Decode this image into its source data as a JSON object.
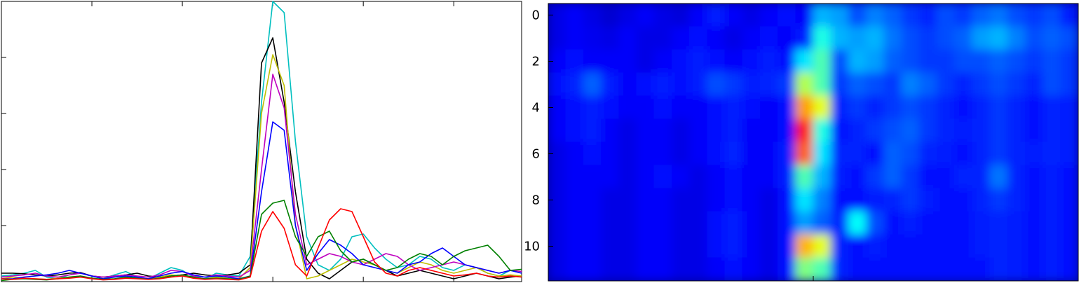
{
  "chart_data": [
    {
      "type": "line",
      "title": "",
      "xlabel": "",
      "ylabel": "",
      "xlim": [
        0,
        46
      ],
      "ylim": [
        0,
        5
      ],
      "x_ticks": [
        0,
        8,
        16,
        24,
        32,
        40
      ],
      "y_ticks": [
        0,
        1,
        2,
        3,
        4,
        5
      ],
      "grid": false,
      "legend": "none",
      "x": [
        0,
        1,
        2,
        3,
        4,
        5,
        6,
        7,
        8,
        9,
        10,
        11,
        12,
        13,
        14,
        15,
        16,
        17,
        18,
        19,
        20,
        21,
        22,
        23,
        24,
        25,
        26,
        27,
        28,
        29,
        30,
        31,
        32,
        33,
        34,
        35,
        36,
        37,
        38,
        39,
        40,
        41,
        42,
        43,
        44,
        45,
        46
      ],
      "series": [
        {
          "color": "#00bfbf",
          "values": [
            0.1,
            0.12,
            0.15,
            0.2,
            0.08,
            0.05,
            0.12,
            0.15,
            0.1,
            0.05,
            0.12,
            0.18,
            0.08,
            0.05,
            0.15,
            0.25,
            0.2,
            0.08,
            0.05,
            0.15,
            0.12,
            0.1,
            0.45,
            3.2,
            5.0,
            4.8,
            2.5,
            0.8,
            0.3,
            0.2,
            0.4,
            0.8,
            0.85,
            0.6,
            0.4,
            0.25,
            0.3,
            0.45,
            0.4,
            0.25,
            0.2,
            0.3,
            0.25,
            0.15,
            0.1,
            0.2,
            0.15
          ]
        },
        {
          "color": "#000000",
          "values": [
            0.15,
            0.15,
            0.14,
            0.12,
            0.1,
            0.12,
            0.15,
            0.16,
            0.1,
            0.08,
            0.1,
            0.12,
            0.15,
            0.1,
            0.08,
            0.1,
            0.12,
            0.15,
            0.12,
            0.1,
            0.12,
            0.15,
            0.3,
            3.9,
            4.35,
            3.2,
            1.6,
            0.4,
            0.15,
            0.05,
            0.2,
            0.35,
            0.4,
            0.3,
            0.2,
            0.1,
            0.15,
            0.2,
            0.15,
            0.1,
            0.05,
            0.1,
            0.15,
            0.1,
            0.05,
            0.08,
            0.1
          ]
        },
        {
          "color": "#bfbf00",
          "values": [
            0.05,
            0.08,
            0.06,
            0.05,
            0.04,
            0.06,
            0.08,
            0.1,
            0.06,
            0.04,
            0.05,
            0.07,
            0.06,
            0.05,
            0.08,
            0.12,
            0.1,
            0.06,
            0.05,
            0.08,
            0.06,
            0.05,
            0.25,
            3.0,
            4.05,
            3.5,
            1.0,
            0.05,
            0.1,
            0.2,
            0.3,
            0.4,
            0.35,
            0.3,
            0.2,
            0.15,
            0.25,
            0.35,
            0.3,
            0.2,
            0.15,
            0.2,
            0.25,
            0.15,
            0.1,
            0.12,
            0.1
          ]
        },
        {
          "color": "#bf00bf",
          "values": [
            0.08,
            0.1,
            0.12,
            0.15,
            0.1,
            0.08,
            0.12,
            0.15,
            0.1,
            0.08,
            0.1,
            0.12,
            0.1,
            0.08,
            0.12,
            0.2,
            0.18,
            0.1,
            0.08,
            0.12,
            0.1,
            0.08,
            0.2,
            2.0,
            3.7,
            3.1,
            1.2,
            0.3,
            0.4,
            0.5,
            0.45,
            0.35,
            0.3,
            0.4,
            0.5,
            0.45,
            0.3,
            0.2,
            0.25,
            0.3,
            0.35,
            0.3,
            0.25,
            0.2,
            0.15,
            0.2,
            0.18
          ]
        },
        {
          "color": "#0000ff",
          "values": [
            0.05,
            0.05,
            0.08,
            0.1,
            0.12,
            0.15,
            0.2,
            0.15,
            0.1,
            0.05,
            0.08,
            0.1,
            0.08,
            0.05,
            0.1,
            0.15,
            0.18,
            0.12,
            0.08,
            0.1,
            0.08,
            0.05,
            0.1,
            1.6,
            2.85,
            2.7,
            1.0,
            0.2,
            0.5,
            0.75,
            0.65,
            0.5,
            0.3,
            0.25,
            0.2,
            0.15,
            0.3,
            0.35,
            0.5,
            0.6,
            0.45,
            0.3,
            0.25,
            0.2,
            0.15,
            0.2,
            0.15
          ]
        },
        {
          "color": "#008000",
          "values": [
            0.02,
            0.04,
            0.05,
            0.04,
            0.03,
            0.05,
            0.08,
            0.1,
            0.06,
            0.04,
            0.05,
            0.08,
            0.06,
            0.04,
            0.06,
            0.1,
            0.12,
            0.08,
            0.05,
            0.06,
            0.05,
            0.04,
            0.1,
            1.2,
            1.4,
            1.45,
            0.8,
            0.45,
            0.8,
            0.9,
            0.55,
            0.35,
            0.4,
            0.3,
            0.2,
            0.25,
            0.4,
            0.5,
            0.45,
            0.3,
            0.45,
            0.55,
            0.6,
            0.65,
            0.45,
            0.2,
            0.22
          ]
        },
        {
          "color": "#ff0000",
          "values": [
            0.05,
            0.04,
            0.06,
            0.05,
            0.04,
            0.05,
            0.06,
            0.08,
            0.05,
            0.03,
            0.04,
            0.06,
            0.05,
            0.04,
            0.05,
            0.08,
            0.1,
            0.06,
            0.04,
            0.05,
            0.04,
            0.03,
            0.08,
            0.9,
            1.25,
            0.95,
            0.3,
            0.1,
            0.6,
            1.1,
            1.3,
            1.25,
            0.8,
            0.35,
            0.15,
            0.1,
            0.2,
            0.25,
            0.2,
            0.15,
            0.1,
            0.12,
            0.15,
            0.1,
            0.08,
            0.1,
            0.08
          ]
        }
      ]
    },
    {
      "type": "heatmap",
      "title": "",
      "xlabel": "",
      "ylabel": "",
      "colormap": "jet",
      "ylim": [
        11.5,
        -0.5
      ],
      "y_ticks": [
        0,
        2,
        4,
        6,
        8,
        10
      ],
      "x_ticks": [
        0,
        15
      ],
      "rows": 12,
      "cols": 30,
      "values": [
        [
          0.1,
          0.12,
          0.1,
          0.08,
          0.1,
          0.12,
          0.1,
          0.09,
          0.12,
          0.15,
          0.12,
          0.1,
          0.12,
          0.14,
          0.12,
          0.3,
          0.28,
          0.2,
          0.25,
          0.22,
          0.18,
          0.16,
          0.2,
          0.18,
          0.22,
          0.24,
          0.2,
          0.18,
          0.2,
          0.15
        ],
        [
          0.1,
          0.12,
          0.11,
          0.1,
          0.12,
          0.1,
          0.1,
          0.12,
          0.14,
          0.12,
          0.1,
          0.12,
          0.14,
          0.12,
          0.15,
          0.4,
          0.3,
          0.28,
          0.3,
          0.24,
          0.2,
          0.18,
          0.2,
          0.22,
          0.28,
          0.3,
          0.25,
          0.2,
          0.22,
          0.2
        ],
        [
          0.12,
          0.14,
          0.12,
          0.12,
          0.12,
          0.1,
          0.12,
          0.14,
          0.15,
          0.14,
          0.12,
          0.14,
          0.15,
          0.14,
          0.35,
          0.45,
          0.2,
          0.3,
          0.28,
          0.22,
          0.2,
          0.18,
          0.18,
          0.2,
          0.2,
          0.22,
          0.2,
          0.18,
          0.2,
          0.18
        ],
        [
          0.14,
          0.16,
          0.22,
          0.15,
          0.12,
          0.14,
          0.15,
          0.14,
          0.15,
          0.2,
          0.18,
          0.15,
          0.16,
          0.18,
          0.55,
          0.45,
          0.18,
          0.22,
          0.2,
          0.18,
          0.25,
          0.22,
          0.18,
          0.16,
          0.18,
          0.2,
          0.18,
          0.16,
          0.2,
          0.18
        ],
        [
          0.12,
          0.14,
          0.15,
          0.14,
          0.12,
          0.12,
          0.14,
          0.12,
          0.12,
          0.14,
          0.15,
          0.14,
          0.12,
          0.14,
          0.72,
          0.6,
          0.16,
          0.18,
          0.16,
          0.18,
          0.2,
          0.18,
          0.16,
          0.14,
          0.16,
          0.18,
          0.16,
          0.14,
          0.16,
          0.15
        ],
        [
          0.12,
          0.14,
          0.15,
          0.12,
          0.1,
          0.12,
          0.12,
          0.1,
          0.12,
          0.14,
          0.15,
          0.12,
          0.12,
          0.14,
          0.85,
          0.4,
          0.14,
          0.16,
          0.18,
          0.2,
          0.22,
          0.18,
          0.16,
          0.15,
          0.16,
          0.18,
          0.16,
          0.14,
          0.16,
          0.15
        ],
        [
          0.1,
          0.12,
          0.14,
          0.12,
          0.1,
          0.12,
          0.12,
          0.1,
          0.12,
          0.14,
          0.16,
          0.12,
          0.12,
          0.15,
          0.78,
          0.35,
          0.16,
          0.16,
          0.14,
          0.22,
          0.2,
          0.16,
          0.15,
          0.14,
          0.16,
          0.18,
          0.16,
          0.15,
          0.16,
          0.15
        ],
        [
          0.1,
          0.12,
          0.12,
          0.12,
          0.1,
          0.12,
          0.14,
          0.12,
          0.1,
          0.12,
          0.14,
          0.12,
          0.12,
          0.15,
          0.45,
          0.3,
          0.15,
          0.14,
          0.18,
          0.22,
          0.18,
          0.14,
          0.14,
          0.16,
          0.16,
          0.24,
          0.16,
          0.14,
          0.15,
          0.14
        ],
        [
          0.1,
          0.12,
          0.12,
          0.1,
          0.1,
          0.12,
          0.12,
          0.1,
          0.1,
          0.12,
          0.14,
          0.12,
          0.1,
          0.14,
          0.35,
          0.25,
          0.14,
          0.14,
          0.15,
          0.16,
          0.18,
          0.15,
          0.14,
          0.14,
          0.16,
          0.18,
          0.16,
          0.14,
          0.15,
          0.14
        ],
        [
          0.1,
          0.12,
          0.12,
          0.1,
          0.1,
          0.12,
          0.12,
          0.1,
          0.1,
          0.14,
          0.15,
          0.12,
          0.1,
          0.14,
          0.28,
          0.22,
          0.16,
          0.38,
          0.2,
          0.14,
          0.15,
          0.14,
          0.14,
          0.14,
          0.15,
          0.16,
          0.15,
          0.14,
          0.15,
          0.14
        ],
        [
          0.1,
          0.12,
          0.12,
          0.1,
          0.1,
          0.12,
          0.12,
          0.1,
          0.1,
          0.14,
          0.15,
          0.12,
          0.1,
          0.14,
          0.7,
          0.6,
          0.16,
          0.14,
          0.15,
          0.14,
          0.14,
          0.14,
          0.14,
          0.14,
          0.15,
          0.16,
          0.15,
          0.14,
          0.15,
          0.14
        ],
        [
          0.1,
          0.12,
          0.12,
          0.1,
          0.1,
          0.12,
          0.12,
          0.1,
          0.1,
          0.12,
          0.14,
          0.12,
          0.1,
          0.14,
          0.5,
          0.45,
          0.16,
          0.14,
          0.14,
          0.14,
          0.14,
          0.14,
          0.14,
          0.14,
          0.14,
          0.16,
          0.15,
          0.14,
          0.15,
          0.14
        ]
      ]
    }
  ]
}
